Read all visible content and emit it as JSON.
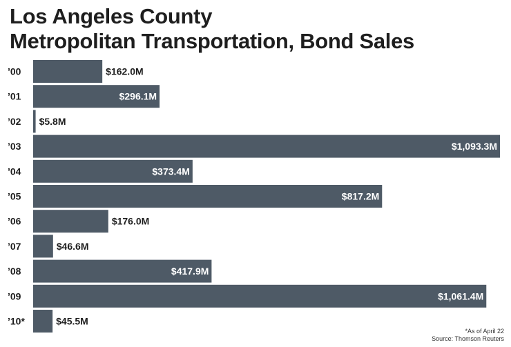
{
  "chart_data": {
    "type": "bar",
    "orientation": "horizontal",
    "title": "Los Angeles County Metropolitan Transportation, Bond Sales",
    "title_lines": [
      "Los Angeles County",
      "Metropolitan Transportation, Bond Sales"
    ],
    "categories": [
      "’00",
      "’01",
      "’02",
      "’03",
      "’04",
      "’05",
      "’06",
      "’07",
      "’08",
      "’09",
      "’10*"
    ],
    "values": [
      162.0,
      296.1,
      5.8,
      1093.3,
      373.4,
      817.2,
      176.0,
      46.6,
      417.9,
      1061.4,
      45.5
    ],
    "value_labels": [
      "$162.0M",
      "$296.1M",
      "$5.8M",
      "$1,093.3M",
      "$373.4M",
      "$817.2M",
      "$176.0M",
      "$46.6M",
      "$417.9M",
      "$1,061.4M",
      "$45.5M"
    ],
    "unit": "millions of dollars",
    "xlabel": "",
    "ylabel": "",
    "xlim": [
      0,
      1093.3
    ],
    "bar_color": "#4e5a66",
    "grid": false
  },
  "footnote": {
    "note": "*As of April 22",
    "source": "Source: Thomson Reuters"
  }
}
